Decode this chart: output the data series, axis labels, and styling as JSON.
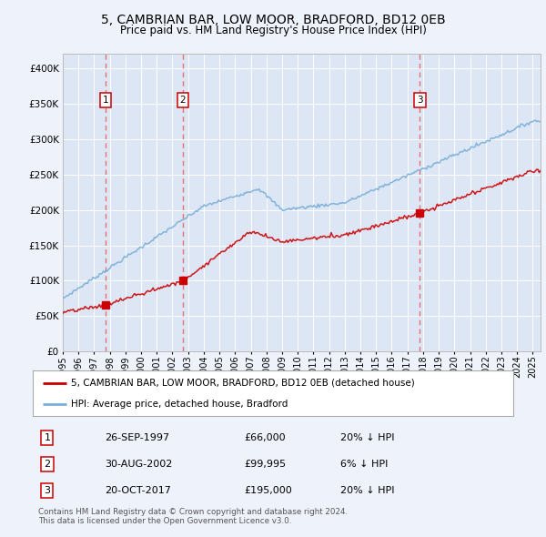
{
  "title": "5, CAMBRIAN BAR, LOW MOOR, BRADFORD, BD12 0EB",
  "subtitle": "Price paid vs. HM Land Registry's House Price Index (HPI)",
  "background_color": "#eef2fa",
  "plot_bg_color": "#dce6f5",
  "grid_color": "#ffffff",
  "ylim": [
    0,
    420000
  ],
  "yticks": [
    0,
    50000,
    100000,
    150000,
    200000,
    250000,
    300000,
    350000,
    400000
  ],
  "ytick_labels": [
    "£0",
    "£50K",
    "£100K",
    "£150K",
    "£200K",
    "£250K",
    "£300K",
    "£350K",
    "£400K"
  ],
  "sale_dates": [
    1997.73,
    2002.66,
    2017.8
  ],
  "sale_prices": [
    66000,
    99995,
    195000
  ],
  "sale_labels": [
    "1",
    "2",
    "3"
  ],
  "hpi_color": "#7aaed6",
  "price_color": "#cc0000",
  "marker_color": "#cc0000",
  "dashed_color": "#e87070",
  "legend_line1": "5, CAMBRIAN BAR, LOW MOOR, BRADFORD, BD12 0EB (detached house)",
  "legend_line2": "HPI: Average price, detached house, Bradford",
  "table_entries": [
    [
      "1",
      "26-SEP-1997",
      "£66,000",
      "20% ↓ HPI"
    ],
    [
      "2",
      "30-AUG-2002",
      "£99,995",
      "6% ↓ HPI"
    ],
    [
      "3",
      "20-OCT-2017",
      "£195,000",
      "20% ↓ HPI"
    ]
  ],
  "footnote": "Contains HM Land Registry data © Crown copyright and database right 2024.\nThis data is licensed under the Open Government Licence v3.0.",
  "xmin": 1995.0,
  "xmax": 2025.5
}
